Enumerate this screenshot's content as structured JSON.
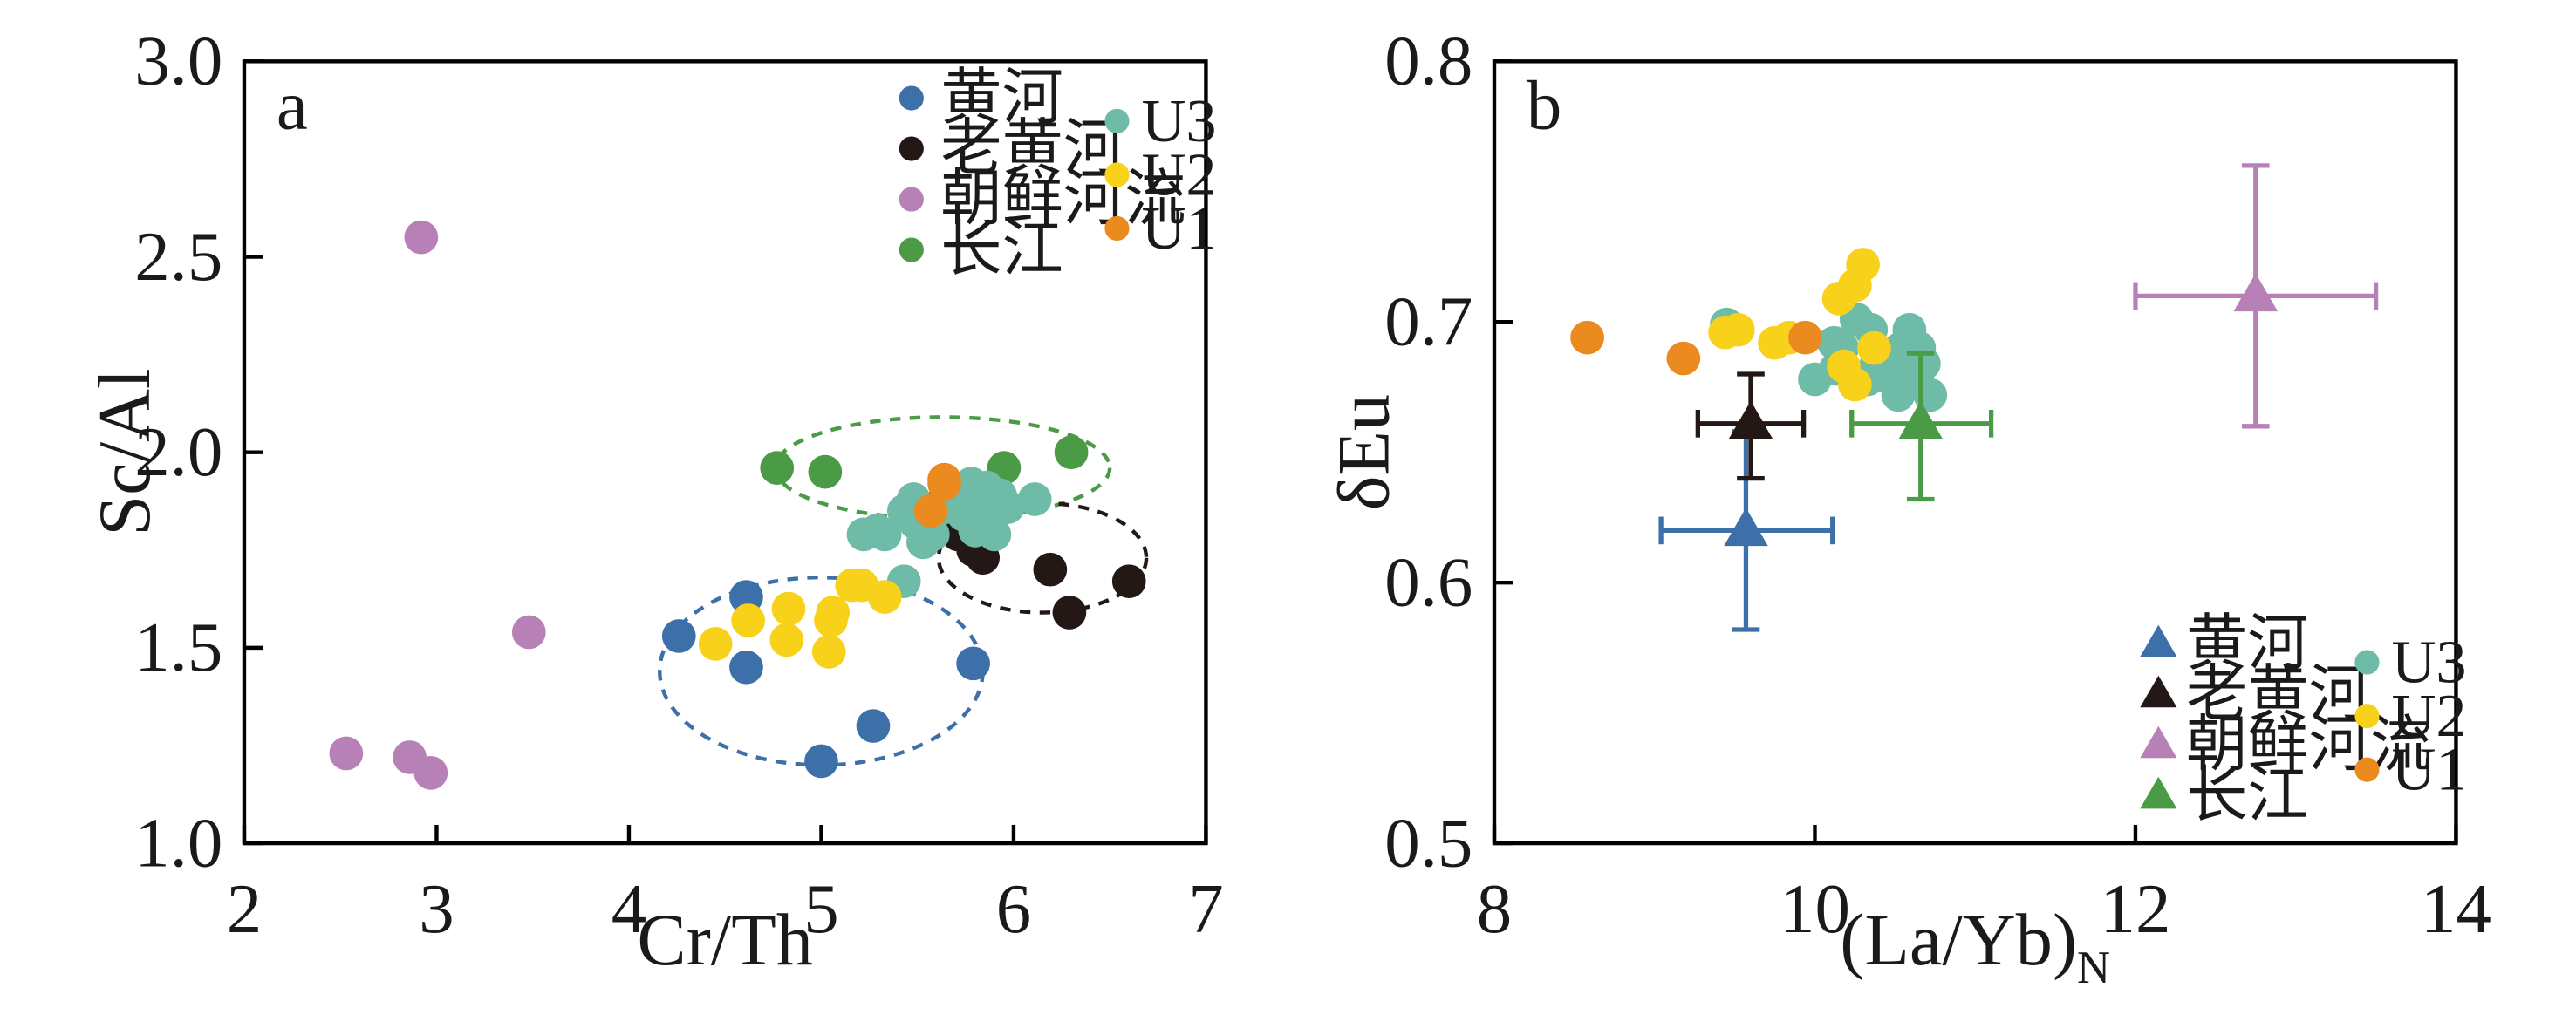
{
  "colors": {
    "huanghe": "#3d6fa8",
    "lao_huanghe": "#231815",
    "chaoxian": "#b780b6",
    "changjiang": "#4a9a46",
    "U3": "#6ebba8",
    "U2": "#f7d11a",
    "U1": "#ea8a1f"
  },
  "chart_data": [
    {
      "type": "scatter",
      "panel_label": "a",
      "xlabel": "Cr/Th",
      "ylabel": "Sc/Al",
      "xlim": [
        2,
        7
      ],
      "ylim": [
        1.0,
        3.0
      ],
      "xticks": [
        "2",
        "3",
        "4",
        "5",
        "6",
        "7"
      ],
      "yticks": [
        "1.0",
        "1.5",
        "2.0",
        "2.5",
        "3.0"
      ],
      "legend_groups": [
        [
          "黄河",
          "老黄河",
          "朝鲜河流",
          "长江"
        ],
        [
          "U3",
          "U2",
          "U1"
        ]
      ],
      "series": [
        {
          "name": "黄河",
          "color_key": "huanghe",
          "points": [
            [
              4.26,
              1.53
            ],
            [
              4.61,
              1.63
            ],
            [
              4.61,
              1.45
            ],
            [
              5.0,
              1.21
            ],
            [
              5.27,
              1.3
            ],
            [
              5.79,
              1.46
            ]
          ]
        },
        {
          "name": "老黄河",
          "color_key": "lao_huanghe",
          "points": [
            [
              5.71,
              1.79
            ],
            [
              5.79,
              1.75
            ],
            [
              5.83,
              1.74
            ],
            [
              5.84,
              1.73
            ],
            [
              6.19,
              1.7
            ],
            [
              6.29,
              1.59
            ],
            [
              6.6,
              1.67
            ]
          ]
        },
        {
          "name": "朝鲜河流",
          "color_key": "chaoxian",
          "points": [
            [
              2.92,
              2.55
            ],
            [
              3.48,
              1.54
            ],
            [
              2.53,
              1.23
            ],
            [
              2.86,
              1.22
            ],
            [
              2.97,
              1.18
            ]
          ]
        },
        {
          "name": "长江",
          "color_key": "changjiang",
          "points": [
            [
              4.77,
              1.96
            ],
            [
              5.02,
              1.95
            ],
            [
              5.64,
              1.88
            ],
            [
              5.95,
              1.96
            ],
            [
              6.3,
              2.0
            ],
            [
              5.78,
              1.83
            ]
          ]
        },
        {
          "name": "U3",
          "color_key": "U3",
          "points": [
            [
              5.22,
              1.79
            ],
            [
              5.29,
              1.8
            ],
            [
              5.33,
              1.79
            ],
            [
              5.43,
              1.85
            ],
            [
              5.48,
              1.88
            ],
            [
              5.49,
              1.82
            ],
            [
              5.53,
              1.77
            ],
            [
              5.58,
              1.79
            ],
            [
              5.6,
              1.85
            ],
            [
              5.67,
              1.86
            ],
            [
              5.7,
              1.9
            ],
            [
              5.74,
              1.84
            ],
            [
              5.78,
              1.92
            ],
            [
              5.8,
              1.8
            ],
            [
              5.84,
              1.86
            ],
            [
              5.86,
              1.91
            ],
            [
              5.88,
              1.82
            ],
            [
              5.93,
              1.89
            ],
            [
              5.97,
              1.86
            ],
            [
              6.11,
              1.88
            ],
            [
              5.9,
              1.79
            ],
            [
              5.43,
              1.67
            ],
            [
              5.64,
              1.87
            ],
            [
              5.56,
              1.85
            ],
            [
              5.77,
              1.88
            ]
          ]
        },
        {
          "name": "U2",
          "color_key": "U2",
          "points": [
            [
              4.45,
              1.51
            ],
            [
              4.62,
              1.57
            ],
            [
              4.82,
              1.52
            ],
            [
              4.83,
              1.6
            ],
            [
              5.04,
              1.49
            ],
            [
              5.05,
              1.57
            ],
            [
              5.06,
              1.59
            ],
            [
              5.16,
              1.66
            ],
            [
              5.21,
              1.66
            ],
            [
              5.33,
              1.63
            ]
          ]
        },
        {
          "name": "U1",
          "color_key": "U1",
          "points": [
            [
              5.57,
              1.85
            ],
            [
              5.64,
              1.93
            ],
            [
              5.64,
              1.92
            ]
          ]
        }
      ],
      "ellipses": [
        {
          "color_key": "changjiang",
          "cx": 5.63,
          "cy": 1.96,
          "rx": 0.87,
          "ry": 0.13
        },
        {
          "color_key": "huanghe",
          "cx": 5.0,
          "cy": 1.44,
          "rx": 0.84,
          "ry": 0.24
        },
        {
          "color_key": "lao_huanghe",
          "cx": 6.15,
          "cy": 1.73,
          "rx": 0.54,
          "ry": 0.14
        }
      ]
    },
    {
      "type": "scatter",
      "panel_label": "b",
      "xlabel": "(La/Yb)",
      "xlabel_subscript": "N",
      "ylabel": "δEu",
      "xlim": [
        8,
        14
      ],
      "ylim": [
        0.5,
        0.8
      ],
      "xticks": [
        "8",
        "10",
        "12",
        "14"
      ],
      "yticks": [
        "0.5",
        "0.6",
        "0.7",
        "0.8"
      ],
      "legend_groups": [
        [
          "黄河",
          "老黄河",
          "朝鲜河流",
          "长江"
        ],
        [
          "U3",
          "U2",
          "U1"
        ]
      ],
      "error_markers": [
        {
          "name": "黄河",
          "color_key": "huanghe",
          "x": 9.57,
          "y": 0.62,
          "xerr": [
            9.04,
            10.11
          ],
          "yerr": [
            0.582,
            0.658
          ]
        },
        {
          "name": "老黄河",
          "color_key": "lao_huanghe",
          "x": 9.6,
          "y": 0.661,
          "xerr": [
            9.27,
            9.93
          ],
          "yerr": [
            0.64,
            0.68
          ]
        },
        {
          "name": "朝鲜河流",
          "color_key": "chaoxian",
          "x": 12.75,
          "y": 0.71,
          "xerr": [
            12.0,
            13.5
          ],
          "yerr": [
            0.66,
            0.76
          ]
        },
        {
          "name": "长江",
          "color_key": "changjiang",
          "x": 10.66,
          "y": 0.661,
          "xerr": [
            10.23,
            11.1
          ],
          "yerr": [
            0.632,
            0.688
          ]
        }
      ],
      "series": [
        {
          "name": "U3",
          "color_key": "U3",
          "points": [
            [
              9.45,
              0.699
            ],
            [
              10.0,
              0.678
            ],
            [
              10.12,
              0.692
            ],
            [
              10.13,
              0.682
            ],
            [
              10.17,
              0.69
            ],
            [
              10.26,
              0.701
            ],
            [
              10.33,
              0.678
            ],
            [
              10.35,
              0.697
            ],
            [
              10.38,
              0.683
            ],
            [
              10.42,
              0.688
            ],
            [
              10.47,
              0.681
            ],
            [
              10.5,
              0.684
            ],
            [
              10.52,
              0.672
            ],
            [
              10.55,
              0.68
            ],
            [
              10.57,
              0.688
            ],
            [
              10.59,
              0.697
            ],
            [
              10.61,
              0.686
            ],
            [
              10.63,
              0.678
            ],
            [
              10.65,
              0.69
            ],
            [
              10.68,
              0.684
            ],
            [
              10.72,
              0.672
            ],
            [
              10.43,
              0.685
            ],
            [
              10.48,
              0.678
            ],
            [
              10.54,
              0.69
            ]
          ]
        },
        {
          "name": "U2",
          "color_key": "U2",
          "points": [
            [
              9.44,
              0.696
            ],
            [
              9.52,
              0.697
            ],
            [
              9.75,
              0.692
            ],
            [
              9.84,
              0.694
            ],
            [
              10.15,
              0.709
            ],
            [
              10.18,
              0.683
            ],
            [
              10.25,
              0.714
            ],
            [
              10.25,
              0.676
            ],
            [
              10.3,
              0.722
            ],
            [
              10.37,
              0.69
            ]
          ]
        },
        {
          "name": "U1",
          "color_key": "U1",
          "points": [
            [
              8.58,
              0.694
            ],
            [
              9.18,
              0.686
            ],
            [
              9.94,
              0.694
            ]
          ]
        }
      ]
    }
  ]
}
